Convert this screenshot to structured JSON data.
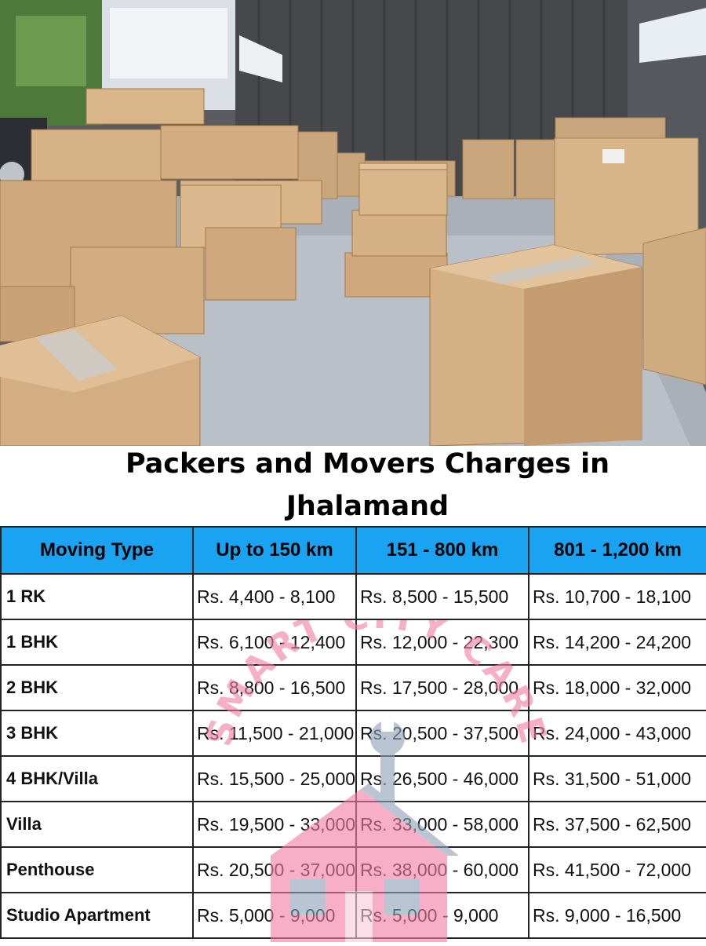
{
  "title": {
    "line1": "Packers and Movers Charges in",
    "line2": "Jhalamand"
  },
  "table": {
    "headers": [
      "Moving Type",
      "Up to 150 km",
      "151 - 800 km",
      "801 - 1,200 km"
    ],
    "rows": [
      {
        "type": "1 RK",
        "c1": "Rs. 4,400 - 8,100",
        "c2": "Rs. 8,500 - 15,500",
        "c3": "Rs. 10,700 - 18,100"
      },
      {
        "type": "1 BHK",
        "c1": "Rs. 6,100 - 12,400",
        "c2": "Rs. 12,000 - 22,300",
        "c3": "Rs. 14,200 - 24,200"
      },
      {
        "type": "2 BHK",
        "c1": "Rs. 8,800 - 16,500",
        "c2": "Rs. 17,500 - 28,000",
        "c3": "Rs. 18,000 - 32,000"
      },
      {
        "type": "3 BHK",
        "c1": "Rs. 11,500 - 21,000",
        "c2": "Rs. 20,500 - 37,500",
        "c3": "Rs. 24,000 - 43,000"
      },
      {
        "type": "4 BHK/Villa",
        "c1": "Rs. 15,500 - 25,000",
        "c2": "Rs. 26,500 - 46,000",
        "c3": "Rs. 31,500 - 51,000"
      },
      {
        "type": "Villa",
        "c1": "Rs. 19,500 - 33,000",
        "c2": "Rs. 33,000 - 58,000",
        "c3": "Rs. 37,500 - 62,500"
      },
      {
        "type": "Penthouse",
        "c1": "Rs. 20,500 - 37,000",
        "c2": "Rs. 38,000 - 60,000",
        "c3": "Rs. 41,500 - 72,000"
      },
      {
        "type": "Studio Apartment",
        "c1": "Rs. 5,000 - 9,000",
        "c2": "Rs. 5,000 - 9,000",
        "c3": "Rs. 9,000 - 16,500"
      }
    ]
  },
  "watermark": {
    "text": "SMART CITY CARE"
  },
  "colors": {
    "header_bg": "#1aa3f0",
    "watermark_pink": "#f27fa6",
    "watermark_grey": "#8fa3b8"
  }
}
